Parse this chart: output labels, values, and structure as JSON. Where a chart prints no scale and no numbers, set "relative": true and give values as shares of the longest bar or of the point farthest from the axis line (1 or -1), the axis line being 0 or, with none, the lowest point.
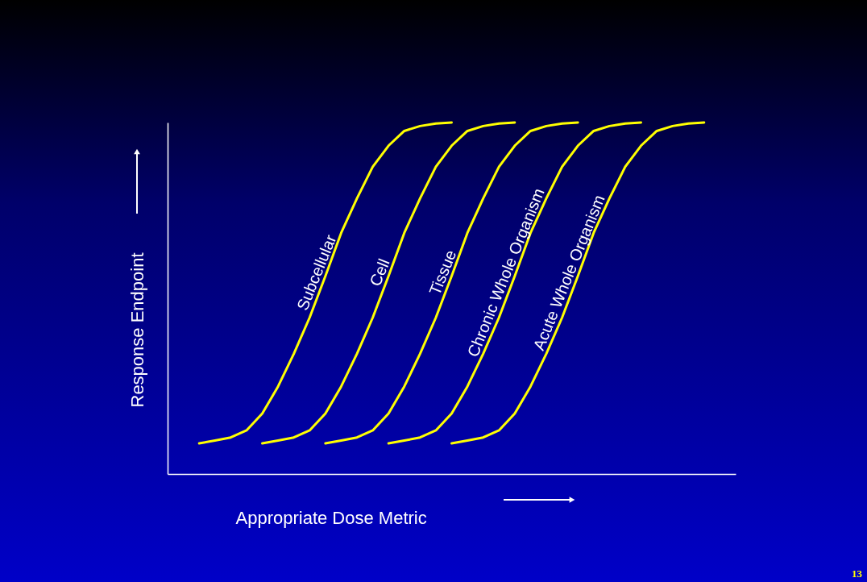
{
  "chart_data": {
    "type": "line",
    "relative": true,
    "line_style": "solid",
    "xlabel": "Appropriate Dose Metric",
    "ylabel": "Response Endpoint",
    "annotations": [
      "13"
    ],
    "categories": [
      null,
      null,
      null,
      null,
      null,
      null,
      null,
      null,
      null,
      null,
      null,
      null,
      null,
      null,
      null,
      null,
      null,
      null,
      null,
      null,
      null,
      null,
      null,
      null,
      null,
      null,
      null,
      null,
      null,
      null,
      null,
      null,
      null
    ],
    "series": [
      {
        "name": "Subcellular",
        "color": "#ffff00",
        "values": [
          0.087,
          0.095,
          0.104,
          0.124,
          0.172,
          0.249,
          0.342,
          0.445,
          0.563,
          0.686,
          0.784,
          0.874,
          0.934,
          0.976,
          0.99,
          0.997,
          1,
          null,
          null,
          null,
          null,
          null,
          null,
          null,
          null,
          null,
          null,
          null,
          null,
          null,
          null,
          null,
          null
        ]
      },
      {
        "name": "Cell",
        "color": "#ffff00",
        "values": [
          null,
          null,
          null,
          null,
          0.087,
          0.095,
          0.104,
          0.124,
          0.172,
          0.249,
          0.342,
          0.445,
          0.563,
          0.686,
          0.784,
          0.874,
          0.934,
          0.976,
          0.99,
          0.997,
          1,
          null,
          null,
          null,
          null,
          null,
          null,
          null,
          null,
          null,
          null,
          null,
          null
        ]
      },
      {
        "name": "Tissue",
        "color": "#ffff00",
        "values": [
          null,
          null,
          null,
          null,
          null,
          null,
          null,
          null,
          0.087,
          0.095,
          0.104,
          0.124,
          0.172,
          0.249,
          0.342,
          0.445,
          0.563,
          0.686,
          0.784,
          0.874,
          0.934,
          0.976,
          0.99,
          0.997,
          1,
          null,
          null,
          null,
          null,
          null,
          null,
          null,
          null
        ]
      },
      {
        "name": "Chronic Whole Organism",
        "color": "#ffff00",
        "values": [
          null,
          null,
          null,
          null,
          null,
          null,
          null,
          null,
          null,
          null,
          null,
          null,
          0.087,
          0.095,
          0.104,
          0.124,
          0.172,
          0.249,
          0.342,
          0.445,
          0.563,
          0.686,
          0.784,
          0.874,
          0.934,
          0.976,
          0.99,
          0.997,
          1,
          null,
          null,
          null,
          null
        ]
      },
      {
        "name": "Acute Whole Organism",
        "color": "#ffff00",
        "values": [
          null,
          null,
          null,
          null,
          null,
          null,
          null,
          null,
          null,
          null,
          null,
          null,
          null,
          null,
          null,
          null,
          0.087,
          0.095,
          0.104,
          0.124,
          0.172,
          0.249,
          0.342,
          0.445,
          0.563,
          0.686,
          0.784,
          0.874,
          0.934,
          0.976,
          0.99,
          0.997,
          1
        ]
      }
    ]
  }
}
